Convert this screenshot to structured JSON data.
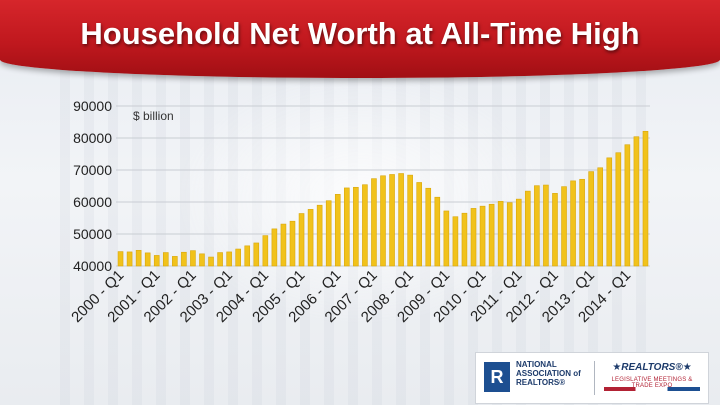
{
  "title": "Household Net Worth at All-Time High",
  "logos": {
    "nar_mark": "R",
    "nar_text": "NATIONAL ASSOCIATION of REALTORS®",
    "realtors": "★REALTORS®★",
    "meetings": "LEGISLATIVE MEETINGS & TRADE EXPO"
  },
  "colors": {
    "banner": "#c8191f",
    "bar": "#f1c21b",
    "bar_edge": "#d9a70c",
    "gridline": "#c9cdd3"
  },
  "chart_data": {
    "type": "bar",
    "unit_label": "$ billion",
    "ylim": [
      40000,
      90000
    ],
    "y_ticks": [
      90000,
      80000,
      70000,
      60000,
      50000,
      40000
    ],
    "grid": true,
    "x_tick_labels": [
      "2000 - Q1",
      "2001 - Q1",
      "2002 - Q1",
      "2003 - Q1",
      "2004 - Q1",
      "2005 - Q1",
      "2006 - Q1",
      "2007 - Q1",
      "2008 - Q1",
      "2009 - Q1",
      "2010 - Q1",
      "2011 - Q1",
      "2012 - Q1",
      "2013 - Q1",
      "2014 - Q1"
    ],
    "values": [
      44500,
      44400,
      44900,
      44100,
      43300,
      44200,
      43000,
      44300,
      44800,
      43800,
      42800,
      44200,
      44400,
      45300,
      46300,
      47200,
      49500,
      51600,
      53100,
      54000,
      56400,
      57700,
      59000,
      60400,
      62400,
      64400,
      64600,
      65400,
      67300,
      68200,
      68600,
      68900,
      68400,
      66100,
      64300,
      61500,
      57200,
      55400,
      56500,
      58000,
      58700,
      59300,
      60200,
      59800,
      60900,
      63400,
      65100,
      65300,
      62700,
      64800,
      66600,
      67100,
      69500,
      70700,
      73800,
      75400,
      77900,
      80400,
      82100
    ]
  }
}
